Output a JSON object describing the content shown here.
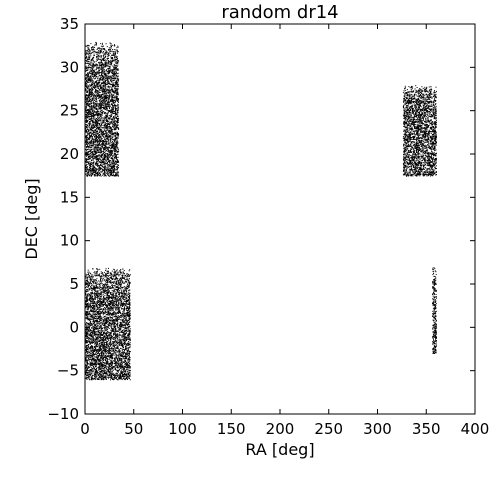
{
  "chart_data": {
    "type": "scatter",
    "title": "random dr14",
    "xlabel": "RA [deg]",
    "ylabel": "DEC [deg]",
    "xlim": [
      0,
      400
    ],
    "ylim": [
      -10,
      35
    ],
    "xticks": [
      "0",
      "50",
      "100",
      "150",
      "200",
      "250",
      "300",
      "350",
      "400"
    ],
    "yticks": [
      "−10",
      "−5",
      "0",
      "5",
      "10",
      "15",
      "20",
      "25",
      "30",
      "35"
    ],
    "grid": false,
    "color": "#000000",
    "regions": [
      {
        "ra": [
          0,
          34
        ],
        "dec": [
          17.5,
          33
        ]
      },
      {
        "ra": [
          326,
          360
        ],
        "dec": [
          17.5,
          28
        ]
      },
      {
        "ra": [
          0,
          46
        ],
        "dec": [
          -6,
          7
        ]
      },
      {
        "ra": [
          356,
          360
        ],
        "dec": [
          -3,
          7
        ]
      }
    ]
  }
}
